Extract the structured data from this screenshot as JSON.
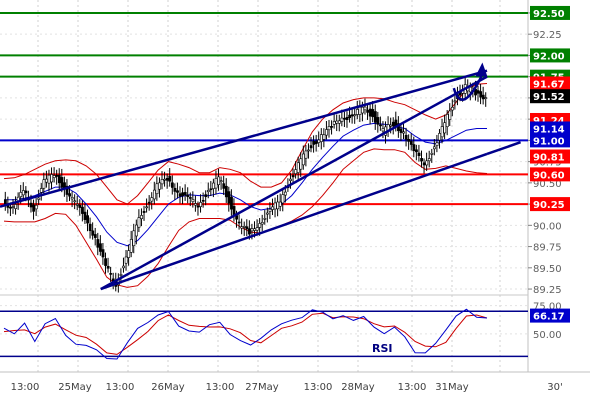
{
  "chart_data": {
    "type": "candlestick",
    "panels": [
      {
        "name": "price",
        "y_ticks": [
          "92.50",
          "92.25",
          "92.00",
          "91.75",
          "91.50",
          "91.25",
          "91.00",
          "90.75",
          "90.50",
          "90.25",
          "90.00",
          "89.75",
          "89.50",
          "89.25"
        ],
        "ylim": [
          89.18,
          92.57
        ],
        "price_labels": [
          {
            "text": "92.50",
            "value": 92.5,
            "bg": "#008000",
            "line": "green"
          },
          {
            "text": "92.00",
            "value": 92.0,
            "bg": "#008000",
            "line": "green"
          },
          {
            "text": "91.75",
            "value": 91.75,
            "bg": "#008000",
            "line": "green"
          },
          {
            "text": "91.67",
            "value": 91.67,
            "bg": "#ff0000",
            "line": "none"
          },
          {
            "text": "91.52",
            "value": 91.52,
            "bg": "#000000",
            "line": "none"
          },
          {
            "text": "91.24",
            "value": 91.24,
            "bg": "#ff0000",
            "line": "none"
          },
          {
            "text": "91.14",
            "value": 91.14,
            "bg": "#0000cc",
            "line": "none"
          },
          {
            "text": "91.00",
            "value": 91.0,
            "bg": "#0000cc",
            "line": "blue"
          },
          {
            "text": "90.81",
            "value": 90.81,
            "bg": "#ff0000",
            "line": "none"
          },
          {
            "text": "90.60",
            "value": 90.6,
            "bg": "#ff0000",
            "line": "red"
          },
          {
            "text": "90.25",
            "value": 90.25,
            "bg": "#ff0000",
            "line": "red"
          }
        ],
        "channel_lines": [
          {
            "from": [
              0.18,
              89.25
            ],
            "to": [
              0.87,
              91.75
            ]
          },
          {
            "from": [
              0.0,
              90.22
            ],
            "to": [
              0.87,
              91.82
            ]
          },
          {
            "from": [
              0.18,
              89.25
            ],
            "to": [
              0.87,
              90.84
            ]
          }
        ],
        "forecast_arrow": {
          "from": [
            0.825,
            91.38
          ],
          "to": [
            0.86,
            91.87
          ]
        },
        "series": [
          {
            "name": "close",
            "values": [
              90.3,
              90.2,
              90.4,
              90.2,
              90.5,
              90.6,
              90.45,
              90.25,
              90.1,
              89.85,
              89.5,
              89.32,
              89.6,
              90.0,
              90.25,
              90.45,
              90.55,
              90.4,
              90.3,
              90.25,
              90.4,
              90.55,
              90.3,
              90.0,
              89.9,
              90.05,
              90.15,
              90.3,
              90.55,
              90.75,
              90.95,
              91.05,
              91.15,
              91.3,
              91.25,
              91.4,
              91.3,
              91.1,
              91.2,
              91.1,
              90.85,
              90.75,
              90.9,
              91.2,
              91.5,
              91.62,
              91.55,
              91.52
            ]
          },
          {
            "name": "bollinger_mid",
            "values": [
              90.3,
              90.3,
              90.32,
              90.35,
              90.4,
              90.45,
              90.45,
              90.38,
              90.25,
              90.1,
              89.92,
              89.8,
              89.76,
              89.82,
              89.95,
              90.1,
              90.25,
              90.33,
              90.36,
              90.35,
              90.35,
              90.38,
              90.36,
              90.3,
              90.22,
              90.18,
              90.2,
              90.25,
              90.35,
              90.5,
              90.66,
              90.8,
              90.93,
              91.05,
              91.12,
              91.18,
              91.2,
              91.19,
              91.17,
              91.14,
              91.05,
              90.98,
              90.96,
              91.0,
              91.06,
              91.12,
              91.14,
              91.14
            ]
          },
          {
            "name": "bollinger_upper",
            "values": [
              90.55,
              90.56,
              90.6,
              90.66,
              90.72,
              90.76,
              90.77,
              90.76,
              90.7,
              90.6,
              90.45,
              90.3,
              90.25,
              90.35,
              90.5,
              90.65,
              90.75,
              90.72,
              90.68,
              90.62,
              90.62,
              90.68,
              90.66,
              90.62,
              90.52,
              90.45,
              90.45,
              90.5,
              90.65,
              90.88,
              91.1,
              91.25,
              91.36,
              91.44,
              91.48,
              91.5,
              91.5,
              91.49,
              91.45,
              91.42,
              91.36,
              91.3,
              91.25,
              91.3,
              91.45,
              91.6,
              91.66,
              91.67
            ]
          },
          {
            "name": "bollinger_lower",
            "values": [
              90.05,
              90.04,
              90.04,
              90.04,
              90.08,
              90.14,
              90.13,
              90.0,
              89.8,
              89.6,
              89.39,
              89.3,
              89.27,
              89.29,
              89.4,
              89.55,
              89.75,
              89.94,
              90.04,
              90.08,
              90.08,
              90.08,
              90.06,
              89.98,
              89.92,
              89.91,
              89.95,
              90.0,
              90.05,
              90.12,
              90.22,
              90.35,
              90.5,
              90.66,
              90.76,
              90.86,
              90.9,
              90.89,
              90.89,
              90.86,
              90.74,
              90.66,
              90.67,
              90.7,
              90.67,
              90.64,
              90.62,
              90.61
            ]
          }
        ]
      },
      {
        "name": "rsi",
        "label": "RSI",
        "y_ticks": [
          "75.00",
          "50.00"
        ],
        "ylim": [
          25,
          80
        ],
        "current_label": {
          "text": "66.17",
          "value": 66.17,
          "bg": "#0000cc"
        },
        "series": [
          {
            "name": "rsi",
            "values": [
              55,
              48,
              60,
              45,
              58,
              62,
              50,
              42,
              38,
              35,
              30,
              28,
              40,
              55,
              62,
              66,
              68,
              58,
              54,
              50,
              57,
              62,
              50,
              42,
              40,
              48,
              53,
              57,
              63,
              66,
              70,
              68,
              65,
              67,
              60,
              65,
              58,
              50,
              54,
              48,
              35,
              32,
              40,
              55,
              67,
              70,
              64,
              66
            ]
          },
          {
            "name": "rsi_signal",
            "values": [
              52,
              51,
              54,
              52,
              55,
              57,
              55,
              50,
              45,
              40,
              35,
              32,
              36,
              45,
              54,
              61,
              65,
              63,
              59,
              55,
              55,
              58,
              55,
              49,
              44,
              44,
              48,
              53,
              58,
              62,
              66,
              67,
              66,
              66,
              63,
              63,
              61,
              56,
              55,
              52,
              45,
              38,
              37,
              44,
              56,
              64,
              66,
              66
            ]
          }
        ]
      }
    ],
    "x_tick_labels": [
      "13:00",
      "25May",
      "13:00",
      "26May",
      "13:00",
      "27May",
      "13:00",
      "28May",
      "13:00",
      "31May"
    ],
    "x_corner_label": "30'",
    "colors": {
      "channel": "#00008b",
      "green_level": "#008000",
      "red_level": "#ff0000",
      "blue_level": "#0000cc",
      "bollinger": "#cc0000",
      "ma": "#0000cc",
      "candle": "#000000"
    }
  }
}
